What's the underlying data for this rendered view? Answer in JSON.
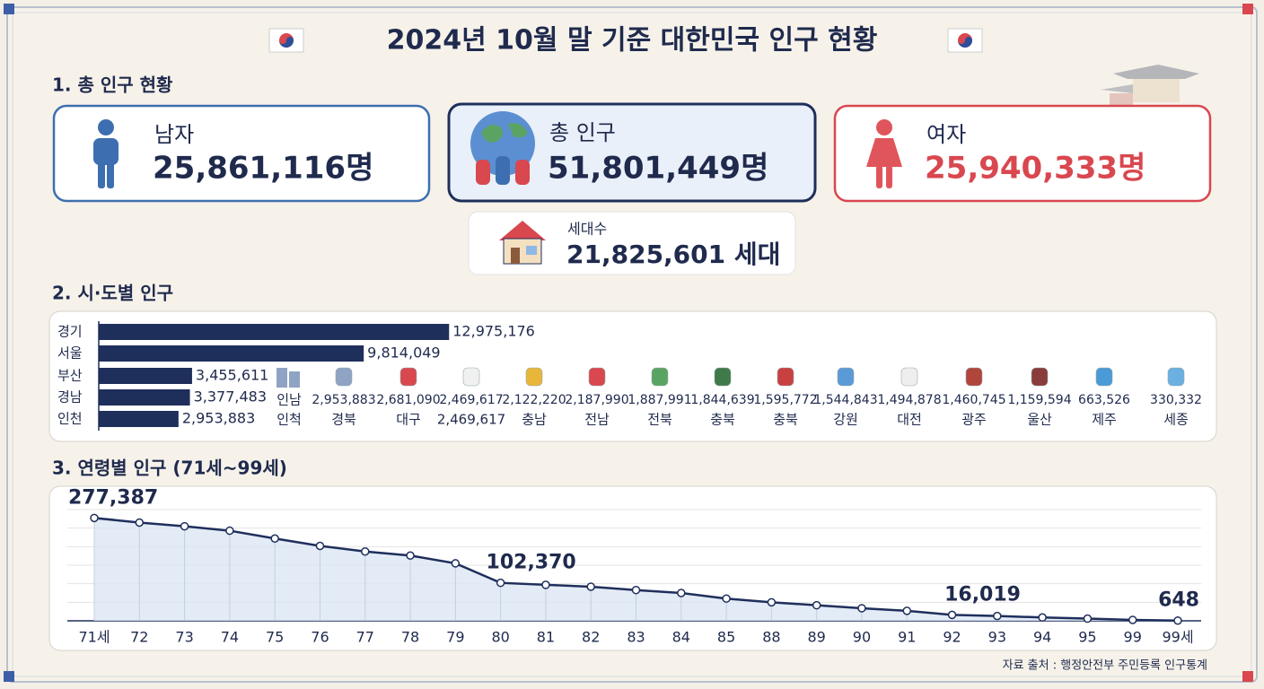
{
  "title": "2024년 10월 말 기준 대한민국 인구 현황",
  "sections": [
    "1. 총 인구 현황",
    "2. 시·도별 인구",
    "3. 연령별 인구 (71세~99세)"
  ],
  "summary": {
    "male": {
      "label": "남자",
      "value": "25,861,116명"
    },
    "total": {
      "label": "총 인구",
      "value": "51,801,449명"
    },
    "female": {
      "label": "여자",
      "value": "25,940,333명"
    },
    "households": {
      "label": "세대수",
      "value": "21,825,601 세대"
    }
  },
  "extra_labels": [
    "인남",
    "인척"
  ],
  "regional_list": [
    {
      "value": "2,953,883",
      "label": "경북"
    },
    {
      "value": "2,681,090",
      "label": "대구"
    },
    {
      "value": "2,469,617",
      "label": "2,469,617"
    },
    {
      "value": "2,122,220",
      "label": "충남"
    },
    {
      "value": "2,187,990",
      "label": "전남"
    },
    {
      "value": "1,887,991",
      "label": "전북"
    },
    {
      "value": "1,844,639",
      "label": "충북"
    },
    {
      "value": "1,595,772",
      "label": "충북"
    },
    {
      "value": "1,544,843",
      "label": "강원"
    },
    {
      "value": "1,494,878",
      "label": "대전"
    },
    {
      "value": "1,460,745",
      "label": "광주"
    },
    {
      "value": "1,159,594",
      "label": "울산"
    },
    {
      "value": "663,526",
      "label": "제주"
    },
    {
      "value": "330,332",
      "label": "세종"
    }
  ],
  "source": "자료 출처 : 행정안전부 주민등록 인구통계",
  "chart_data": [
    {
      "type": "hbar",
      "categories": [
        "경기",
        "서울",
        "부산",
        "경남",
        "인천"
      ],
      "values": [
        12975176,
        9814049,
        3455611,
        3377483,
        2953883
      ],
      "value_labels": [
        "12,975,176",
        "9,814,049",
        "3,455,611",
        "3,377,483",
        "2,953,883"
      ],
      "xlim": [
        0,
        13000000
      ],
      "color": "#1f2f5c"
    },
    {
      "type": "line",
      "categories": [
        "71세",
        "72",
        "73",
        "74",
        "75",
        "76",
        "77",
        "78",
        "79",
        "80",
        "81",
        "82",
        "83",
        "84",
        "85",
        "88",
        "89",
        "90",
        "91",
        "92",
        "93",
        "94",
        "95",
        "99",
        "99세"
      ],
      "values": [
        277387,
        265000,
        255000,
        243000,
        222000,
        202000,
        187000,
        176000,
        155000,
        102370,
        97000,
        92000,
        83000,
        75000,
        60000,
        50000,
        42000,
        34000,
        27000,
        16019,
        13000,
        9000,
        6000,
        2500,
        648
      ],
      "value_labels": [
        "277,387",
        null,
        null,
        null,
        null,
        null,
        null,
        null,
        null,
        "102,370",
        null,
        null,
        null,
        null,
        null,
        null,
        null,
        null,
        null,
        "16,019",
        null,
        null,
        null,
        null,
        "648"
      ],
      "ylim": [
        0,
        300000
      ],
      "yticks": [
        0,
        50000,
        100000,
        150000,
        200000,
        250000,
        300000
      ],
      "grid": true,
      "color": "#1f2f5c",
      "fill": "#dce6f4"
    }
  ]
}
